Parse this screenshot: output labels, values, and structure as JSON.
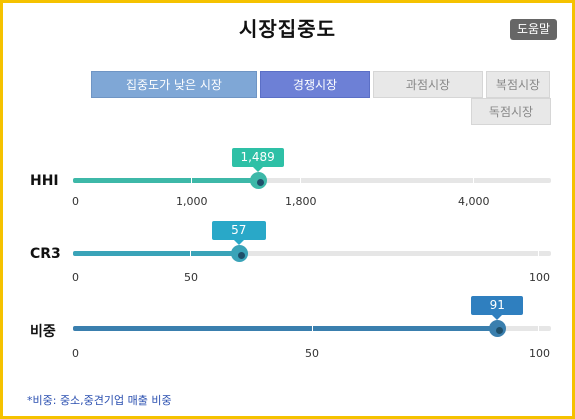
{
  "title": "시장집중도",
  "help_button": "도움말",
  "categories": [
    {
      "label": "집중도가 낮은 시장",
      "state": "active"
    },
    {
      "label": "경쟁시장",
      "state": "active"
    },
    {
      "label": "과점시장",
      "state": "inactive"
    },
    {
      "label": "복점시장",
      "state": "inactive"
    },
    {
      "label": "독점시장",
      "state": "inactive"
    }
  ],
  "indicators": [
    {
      "label": "HHI",
      "value": 1489,
      "value_label": "1,489",
      "ticks": [
        {
          "label": "0",
          "value": 0
        },
        {
          "label": "1,000",
          "value": 1000
        },
        {
          "label": "1,800",
          "value": 1800
        },
        {
          "label": "4,000",
          "value": 4000
        }
      ],
      "fill_color": "#3db8a8",
      "knob_color": "#2a9d8f",
      "bubble_color": "#2ec0a6"
    },
    {
      "label": "CR3",
      "value": 57,
      "value_label": "57",
      "ticks": [
        {
          "label": "0",
          "value": 0
        },
        {
          "label": "50",
          "value": 50
        },
        {
          "label": "100",
          "value": 100
        }
      ],
      "fill_color": "#3aa3b8",
      "knob_color": "#2a8aa4",
      "bubble_color": "#29a8c8"
    },
    {
      "label": "비중",
      "value": 91,
      "value_label": "91",
      "ticks": [
        {
          "label": "0",
          "value": 0
        },
        {
          "label": "50",
          "value": 50
        },
        {
          "label": "100",
          "value": 100
        }
      ],
      "fill_color": "#3a7fae",
      "knob_color": "#2f6e9e",
      "bubble_color": "#2f7fbf"
    }
  ],
  "footnote": "*비중: 중소,중견기업 매출 비중"
}
